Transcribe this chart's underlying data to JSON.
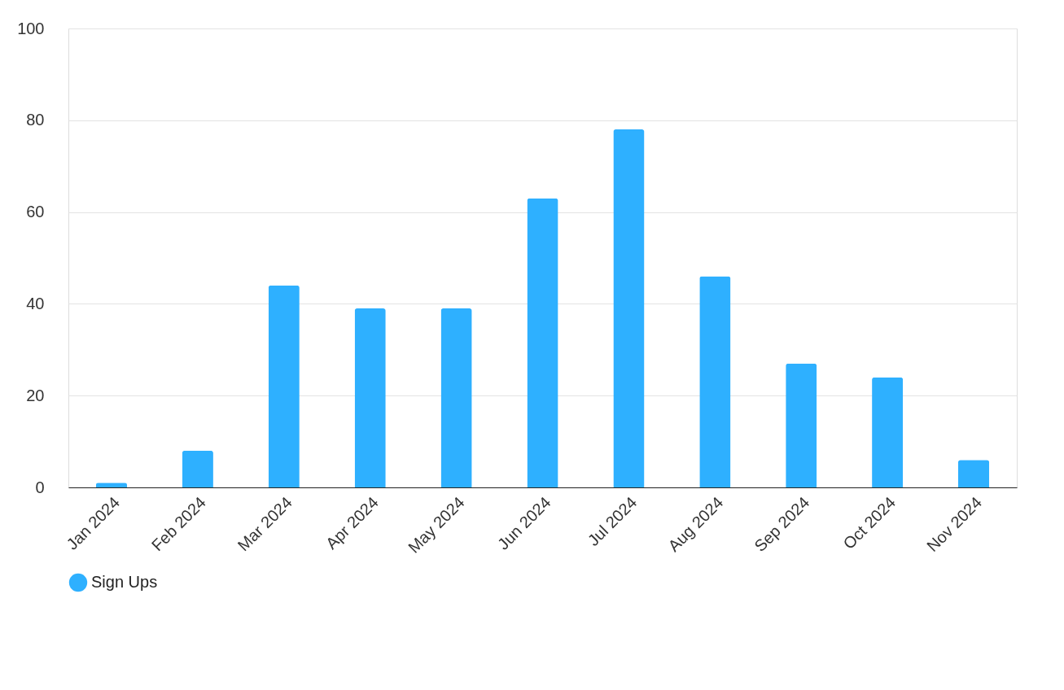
{
  "chart_data": {
    "type": "bar",
    "categories": [
      "Jan 2024",
      "Feb 2024",
      "Mar 2024",
      "Apr 2024",
      "May 2024",
      "Jun 2024",
      "Jul 2024",
      "Aug 2024",
      "Sep 2024",
      "Oct 2024",
      "Nov 2024"
    ],
    "series": [
      {
        "name": "Sign Ups",
        "color": "#2eb0ff",
        "values": [
          1,
          8,
          44,
          39,
          39,
          63,
          78,
          46,
          27,
          24,
          6
        ]
      }
    ],
    "ylim": [
      0,
      100
    ],
    "yticks": [
      0,
      20,
      40,
      60,
      80,
      100
    ],
    "grid": "y",
    "legend": "bottom"
  }
}
